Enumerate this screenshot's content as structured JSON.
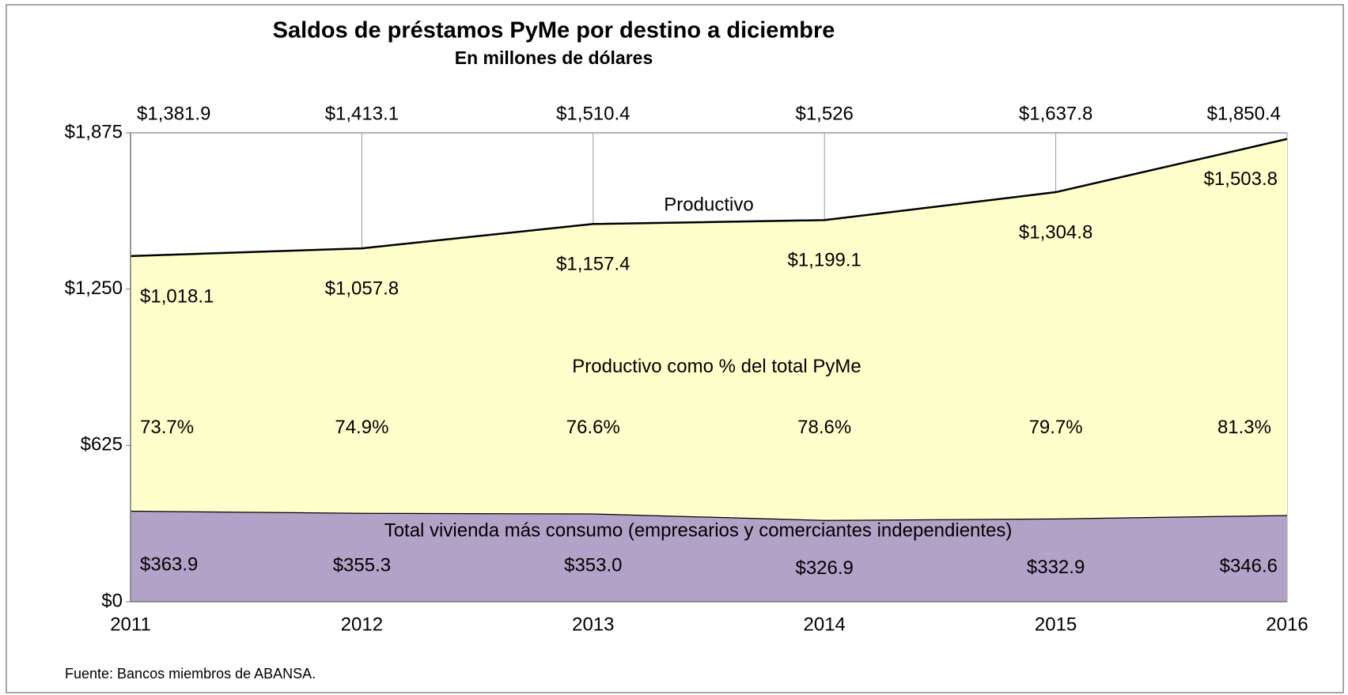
{
  "chart_data": {
    "type": "stacked_area",
    "title": "Saldos de préstamos PyMe por destino a diciembre",
    "subtitle": "En millones de dólares",
    "x": [
      2011,
      2012,
      2013,
      2014,
      2015,
      2016
    ],
    "xlim": [
      2011,
      2016
    ],
    "xticks": [
      2011,
      2012,
      2013,
      2014,
      2015,
      2016
    ],
    "ylim": [
      0,
      1875
    ],
    "yticks": [
      {
        "value": 0,
        "label": "$0"
      },
      {
        "value": 625,
        "label": "$625"
      },
      {
        "value": 1250,
        "label": "$1,250"
      },
      {
        "value": 1875,
        "label": "$1,875"
      }
    ],
    "xgrid": true,
    "series": [
      {
        "name": "Total vivienda más consumo (empresarios y comerciantes independientes)",
        "color": "#b3a2c7",
        "values": [
          363.9,
          355.3,
          353.0,
          326.9,
          332.9,
          346.6
        ],
        "value_labels": [
          "$363.9",
          "$355.3",
          "$353.0",
          "$326.9",
          "$332.9",
          "$346.6"
        ]
      },
      {
        "name": "Productivo",
        "color": "#ffffcc",
        "values": [
          1018.1,
          1057.8,
          1157.4,
          1199.1,
          1304.8,
          1503.8
        ],
        "value_labels": [
          "$1,018.1",
          "$1,057.8",
          "$1,157.4",
          "$1,199.1",
          "$1,304.8",
          "$1,503.8"
        ]
      }
    ],
    "totals": [
      1381.9,
      1413.1,
      1510.4,
      1526,
      1637.8,
      1850.4
    ],
    "total_labels": [
      "$1,381.9",
      "$1,413.1",
      "$1,510.4",
      "$1,526",
      "$1,637.8",
      "$1,850.4"
    ],
    "percent_annotation": "Productivo como % del total PyMe",
    "percent_values": [
      73.7,
      74.9,
      76.6,
      78.6,
      79.7,
      81.3
    ],
    "percent_labels": [
      "73.7%",
      "74.9%",
      "76.6%",
      "78.6%",
      "79.7%",
      "81.3%"
    ],
    "source": "Fuente: Bancos miembros de ABANSA."
  }
}
